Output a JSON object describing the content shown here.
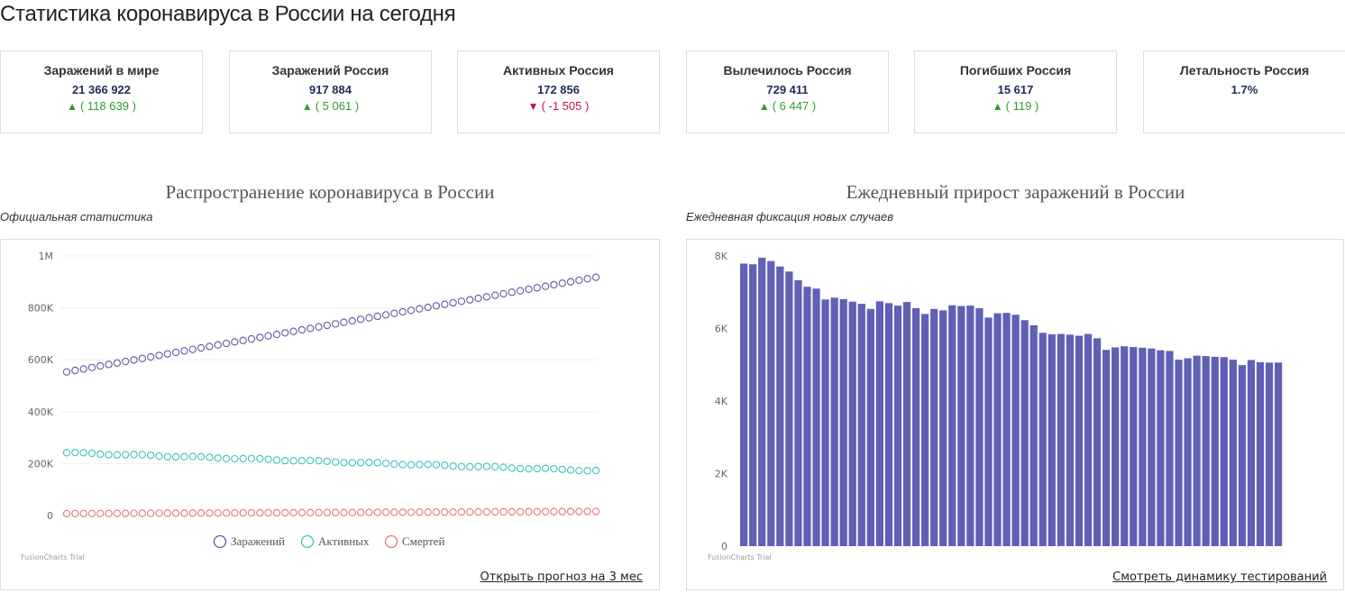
{
  "page": {
    "title": "Статистика коронавируса в России на сегодня"
  },
  "cards": [
    {
      "label": "Заражений в мире",
      "value": "21 366 922",
      "delta": "( 118 639 )",
      "trend": "up"
    },
    {
      "label": "Заражений Россия",
      "value": "917 884",
      "delta": "( 5 061 )",
      "trend": "up"
    },
    {
      "label": "Активных Россия",
      "value": "172 856",
      "delta": "( -1 505 )",
      "trend": "down"
    },
    {
      "label": "Вылечилось Россия",
      "value": "729 411",
      "delta": "( 6 447 )",
      "trend": "up"
    },
    {
      "label": "Погибших Россия",
      "value": "15 617",
      "delta": "( 119 )",
      "trend": "up"
    },
    {
      "label": "Летальность Россия",
      "value": "1.7%",
      "delta": "",
      "trend": ""
    }
  ],
  "icons": {
    "up": "triangle-up-icon",
    "down": "triangle-down-icon"
  },
  "colors": {
    "up": "#2e9d2e",
    "down": "#c4143b",
    "cases": "#5b5ba8",
    "active": "#3cc4bb",
    "deaths": "#e27a7a",
    "bars": "#6060b6"
  },
  "sections": {
    "left": {
      "title": "Распространение коронавируса в России",
      "subtitle": "Официальная статистика",
      "link": "Открыть прогноз на 3 мес",
      "trial": "FusionCharts Trial"
    },
    "right": {
      "title": "Ежедневный прирост заражений в России",
      "subtitle": "Ежедневная фиксация новых случаев",
      "link": "Смотреть динамику тестирований",
      "trial": "FusionCharts Trial"
    }
  },
  "chart_data": [
    {
      "type": "line",
      "title": "Распространение коронавируса в России",
      "subtitle": "Официальная статистика",
      "ylim": [
        0,
        1000000
      ],
      "yticks": [
        "0",
        "200K",
        "400K",
        "600K",
        "800K",
        "1M"
      ],
      "yticks_values": [
        0,
        200000,
        400000,
        600000,
        800000,
        1000000
      ],
      "grid": true,
      "legend": "bottom",
      "points": 64,
      "series": [
        {
          "name": "Заражений",
          "start": 553000,
          "end": 917884,
          "color": "#5b5ba8"
        },
        {
          "name": "Активных",
          "start": 242000,
          "end": 172856,
          "color": "#3cc4bb"
        },
        {
          "name": "Смертей",
          "start": 7300,
          "end": 15617,
          "color": "#e27a7a"
        }
      ]
    },
    {
      "type": "bar",
      "title": "Ежедневный прирост заражений в России",
      "subtitle": "Ежедневная фиксация новых случаев",
      "ylim": [
        0,
        8000
      ],
      "yticks": [
        "0",
        "2K",
        "4K",
        "6K",
        "8K"
      ],
      "yticks_values": [
        0,
        2000,
        4000,
        6000,
        8000
      ],
      "grid": false,
      "values": [
        7790,
        7770,
        7950,
        7860,
        7710,
        7570,
        7330,
        7150,
        7100,
        6800,
        6850,
        6810,
        6740,
        6680,
        6540,
        6750,
        6700,
        6630,
        6730,
        6560,
        6400,
        6540,
        6500,
        6640,
        6620,
        6630,
        6560,
        6300,
        6420,
        6430,
        6380,
        6230,
        6090,
        5880,
        5840,
        5850,
        5830,
        5800,
        5850,
        5730,
        5410,
        5480,
        5510,
        5490,
        5470,
        5450,
        5400,
        5380,
        5140,
        5180,
        5250,
        5240,
        5220,
        5210,
        5140,
        4990,
        5130,
        5070,
        5060,
        5061
      ]
    }
  ]
}
